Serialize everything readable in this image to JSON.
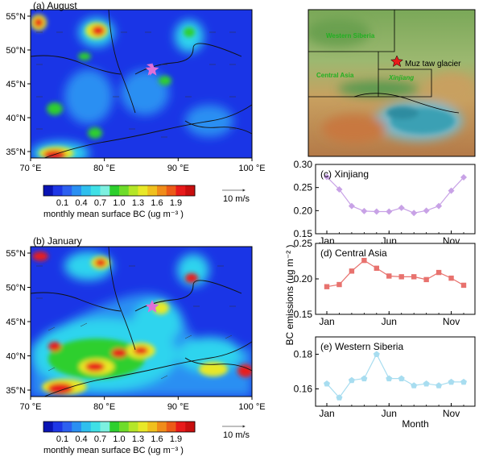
{
  "colors": {
    "map_blue": "#1a35e6",
    "map_cyan": "#2fd4ee",
    "map_green": "#2ecf2e",
    "map_yellow": "#e8e828",
    "map_red": "#e81a1a",
    "xinjiang": "#c8a2e6",
    "central_asia": "#e8726e",
    "western_siberia": "#a8ddf0",
    "star": "#e070d8"
  },
  "map_a": {
    "title": "(a) August",
    "y_ticks": [
      "55°N",
      "50°N",
      "45°N",
      "40°N",
      "35°N"
    ],
    "x_ticks": [
      "70 °E",
      "80 °E",
      "90 °E",
      "100 °E"
    ]
  },
  "map_b": {
    "title": "(b) January",
    "y_ticks": [
      "55°N",
      "50°N",
      "45°N",
      "40°N",
      "35°N"
    ],
    "x_ticks": [
      "70 °E",
      "80 °E",
      "90 °E",
      "100 °E"
    ]
  },
  "colorbar": {
    "ticks": [
      "0.1",
      "0.4",
      "0.7",
      "1.0",
      "1.3",
      "1.6",
      "1.9"
    ],
    "label": "monthly mean surface BC (ug m⁻³ )",
    "wind_ref": "10 m/s",
    "colors": [
      "#0a14b4",
      "#1e37e6",
      "#2d60f0",
      "#2a8ff2",
      "#2fbfee",
      "#3fe0e6",
      "#7cf0e0",
      "#2ecf2e",
      "#6edc2a",
      "#b4e628",
      "#e8e828",
      "#f0c01e",
      "#f08c1a",
      "#ec5a18",
      "#e81a1a",
      "#c80e0e"
    ]
  },
  "map_c": {
    "labels": [
      "Western Siberia",
      "Central Asia",
      "Xinjiang"
    ],
    "site_label": "Muz taw glacier"
  },
  "chart_data": [
    {
      "type": "line",
      "title": "(c) Xinjiang",
      "categories": [
        "Jan",
        "Feb",
        "Mar",
        "Apr",
        "May",
        "Jun",
        "Jul",
        "Aug",
        "Sep",
        "Oct",
        "Nov",
        "Dec"
      ],
      "values": [
        0.273,
        0.246,
        0.21,
        0.199,
        0.198,
        0.198,
        0.206,
        0.195,
        0.2,
        0.21,
        0.243,
        0.272
      ],
      "ylim": [
        0.15,
        0.3
      ],
      "y_ticks": [
        "0.15",
        "0.20",
        "0.25",
        "0.30"
      ],
      "x_ticks": [
        "Jan",
        "Jun",
        "Nov"
      ],
      "color": "#c8a2e6"
    },
    {
      "type": "line",
      "title": "(d) Central Asia",
      "categories": [
        "Jan",
        "Feb",
        "Mar",
        "Apr",
        "May",
        "Jun",
        "Jul",
        "Aug",
        "Sep",
        "Oct",
        "Nov",
        "Dec"
      ],
      "values": [
        0.189,
        0.192,
        0.211,
        0.226,
        0.215,
        0.204,
        0.203,
        0.203,
        0.199,
        0.209,
        0.201,
        0.191
      ],
      "ylim": [
        0.15,
        0.25
      ],
      "y_ticks": [
        "0.15",
        "0.20",
        "0.25"
      ],
      "x_ticks": [
        "Jan",
        "Jun",
        "Nov"
      ],
      "color": "#e8726e"
    },
    {
      "type": "line",
      "title": "(e) Western Siberia",
      "categories": [
        "Jan",
        "Feb",
        "Mar",
        "Apr",
        "May",
        "Jun",
        "Jul",
        "Aug",
        "Sep",
        "Oct",
        "Nov",
        "Dec"
      ],
      "values": [
        0.163,
        0.155,
        0.165,
        0.166,
        0.18,
        0.166,
        0.166,
        0.162,
        0.163,
        0.162,
        0.164,
        0.164
      ],
      "ylim": [
        0.15,
        0.19
      ],
      "y_ticks": [
        "0.16",
        "0.18"
      ],
      "x_ticks": [
        "Jan",
        "Jun",
        "Nov"
      ],
      "color": "#a8ddf0"
    }
  ],
  "shared": {
    "ylabel": "BC emissions (ug m⁻² )",
    "xlabel": "Month"
  }
}
